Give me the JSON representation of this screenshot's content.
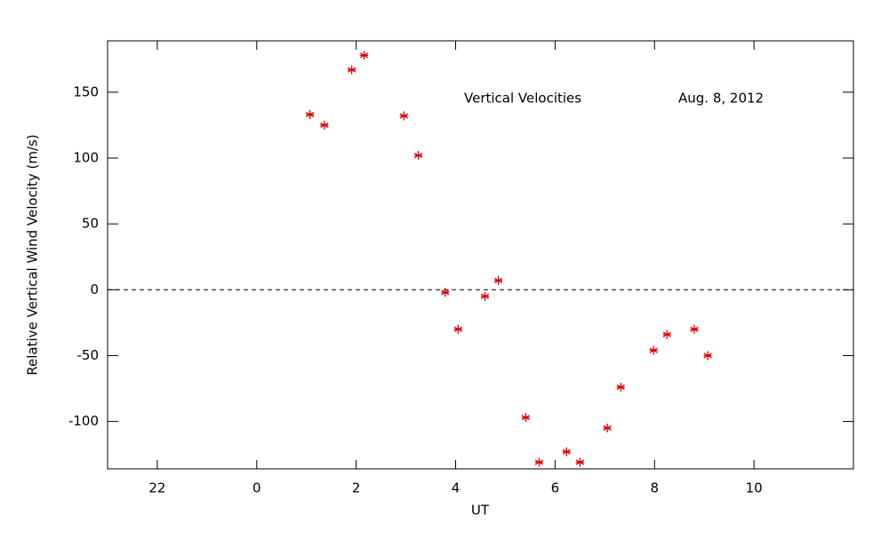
{
  "chart_data": {
    "type": "scatter",
    "annotations": [
      "Vertical Velocities",
      "Aug. 8, 2012"
    ],
    "xlabel": "UT",
    "ylabel": "Relative Vertical Wind Velocity (m/s)",
    "series": [
      {
        "name": "Vertical Velocities",
        "color": "#e00000",
        "x": [
          1.07,
          1.36,
          1.91,
          2.16,
          2.96,
          3.25,
          3.79,
          4.05,
          4.59,
          4.86,
          5.41,
          5.68,
          6.23,
          6.5,
          7.05,
          7.32,
          7.98,
          8.25,
          8.8,
          9.07
        ],
        "values": [
          133,
          125,
          167,
          178,
          132,
          102,
          -2,
          -30,
          -5,
          7,
          -97,
          -131,
          -123,
          -131,
          -105,
          -74,
          -46,
          -34,
          -30,
          -50
        ]
      }
    ],
    "xlim": [
      -3,
      12
    ],
    "xticks": [
      {
        "value": -2,
        "label": "22"
      },
      0,
      2,
      4,
      6,
      8,
      10
    ],
    "ylim": [
      -136,
      189
    ],
    "yticks": [
      -100,
      -50,
      0,
      50,
      100,
      150
    ],
    "hline": 0
  }
}
